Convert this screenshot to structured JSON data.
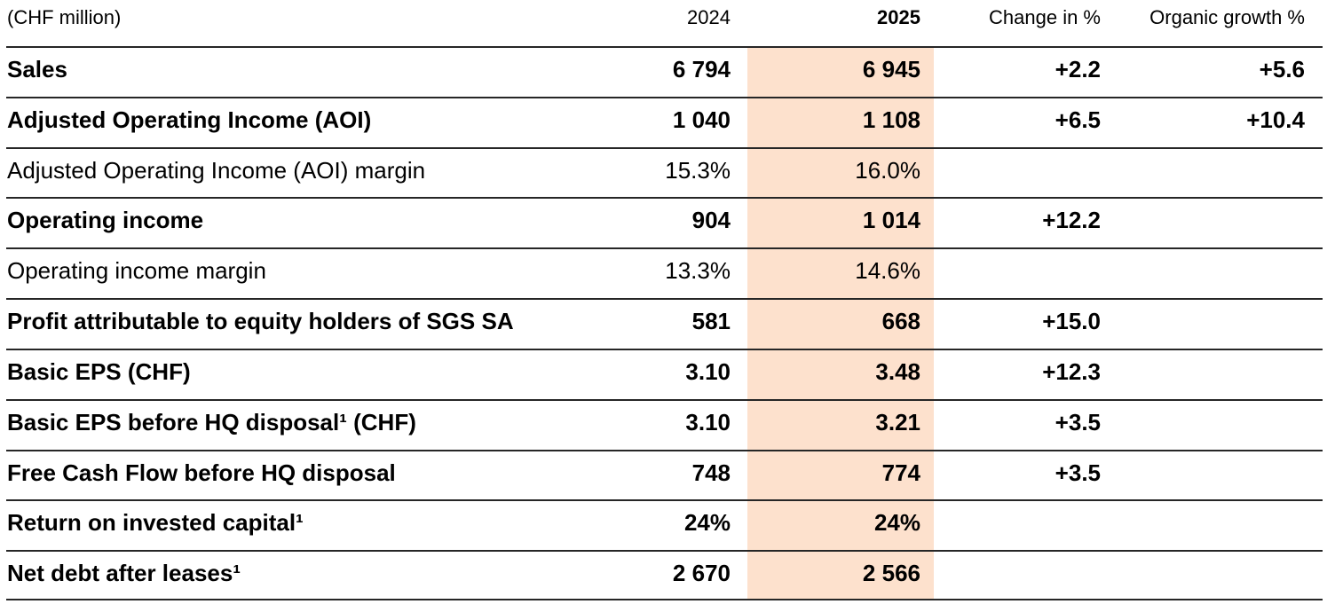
{
  "colors": {
    "highlight_2025_column": "#fde1cd",
    "rule": "#262626",
    "text": "#000000"
  },
  "table": {
    "unit_label": "(CHF million)",
    "columns": {
      "y2024": "2024",
      "y2025": "2025",
      "change": "Change in %",
      "organic": "Organic growth %"
    },
    "rows": [
      {
        "label": "Sales",
        "bold": true,
        "y2024": "6 794",
        "y2025": "6 945",
        "change": "+2.2",
        "organic": "+5.6"
      },
      {
        "label": "Adjusted Operating Income (AOI)",
        "bold": true,
        "y2024": "1 040",
        "y2025": "1 108",
        "change": "+6.5",
        "organic": "+10.4"
      },
      {
        "label": "Adjusted Operating Income (AOI) margin",
        "bold": false,
        "y2024": "15.3%",
        "y2025": "16.0%",
        "change": "",
        "organic": ""
      },
      {
        "label": "Operating income",
        "bold": true,
        "y2024": "904",
        "y2025": "1 014",
        "change": "+12.2",
        "organic": ""
      },
      {
        "label": "Operating income margin",
        "bold": false,
        "y2024": "13.3%",
        "y2025": "14.6%",
        "change": "",
        "organic": ""
      },
      {
        "label": "Profit attributable to equity holders of SGS SA",
        "bold": true,
        "y2024": "581",
        "y2025": "668",
        "change": "+15.0",
        "organic": ""
      },
      {
        "label": "Basic EPS (CHF)",
        "bold": true,
        "y2024": "3.10",
        "y2025": "3.48",
        "change": "+12.3",
        "organic": ""
      },
      {
        "label": "Basic EPS before HQ disposal¹ (CHF)",
        "bold": true,
        "y2024": "3.10",
        "y2025": "3.21",
        "change": "+3.5",
        "organic": ""
      },
      {
        "label": "Free Cash Flow before HQ disposal",
        "bold": true,
        "y2024": "748",
        "y2025": "774",
        "change": "+3.5",
        "organic": ""
      },
      {
        "label": "Return on invested capital¹",
        "bold": true,
        "y2024": "24%",
        "y2025": "24%",
        "change": "",
        "organic": ""
      },
      {
        "label": "Net debt after leases¹",
        "bold": true,
        "y2024": "2 670",
        "y2025": "2 566",
        "change": "",
        "organic": ""
      }
    ]
  }
}
